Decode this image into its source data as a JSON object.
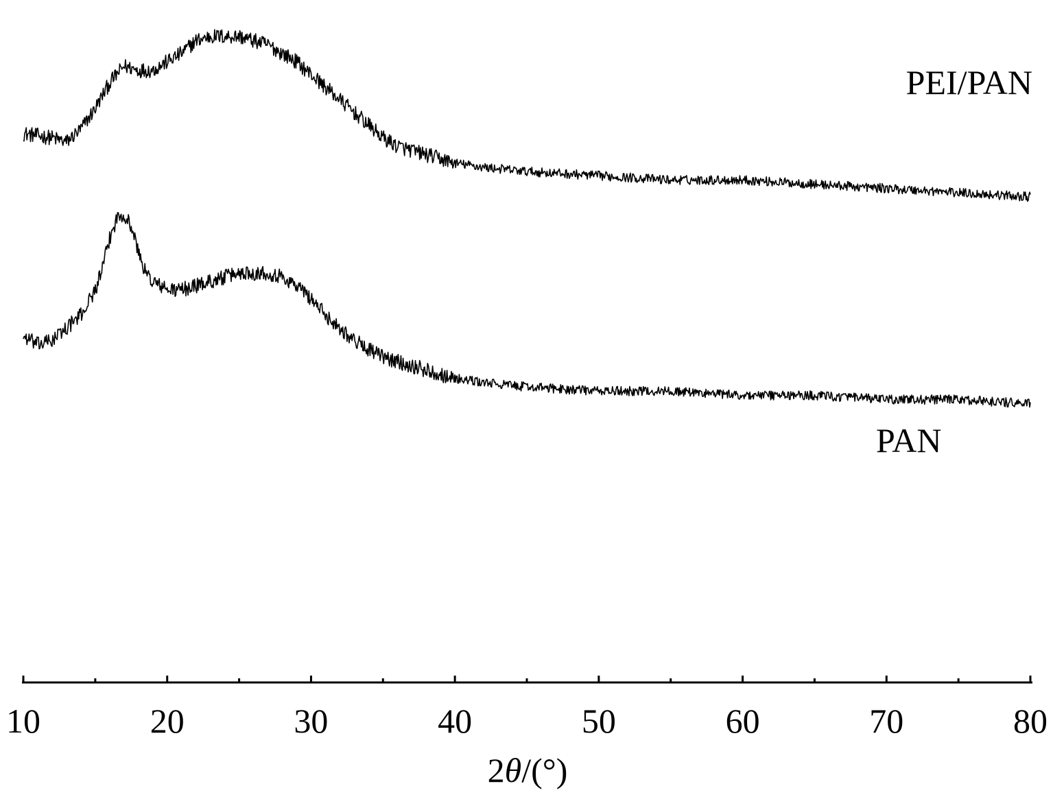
{
  "chart_data": {
    "type": "line",
    "title": "",
    "xlabel": "2θ/(°)",
    "xlabel_parts": [
      "2",
      "θ",
      "/(°)"
    ],
    "ylabel": "",
    "xlim": [
      10,
      80
    ],
    "ylim": [
      0,
      1.6
    ],
    "x_ticks_major": [
      10,
      20,
      30,
      40,
      50,
      60,
      70,
      80
    ],
    "x_ticks_minor": [
      15,
      25,
      35,
      45,
      55,
      65,
      75
    ],
    "y_axis_visible": false,
    "grid": false,
    "legend": "none",
    "colors": {
      "line": "#000000",
      "axis": "#000000",
      "background": "#ffffff"
    },
    "series": [
      {
        "name": "PEI/PAN",
        "x": [
          10,
          12,
          13,
          14,
          15,
          16,
          17,
          18,
          19,
          20,
          21,
          22,
          23,
          24,
          25,
          26,
          27,
          28,
          29,
          30,
          31,
          32,
          33,
          34,
          35,
          36,
          37,
          38,
          39,
          40,
          42,
          45,
          50,
          55,
          60,
          65,
          70,
          75,
          80
        ],
        "y": [
          1.3,
          1.29,
          1.28,
          1.31,
          1.36,
          1.42,
          1.46,
          1.45,
          1.45,
          1.47,
          1.49,
          1.52,
          1.53,
          1.53,
          1.53,
          1.52,
          1.51,
          1.49,
          1.47,
          1.44,
          1.41,
          1.38,
          1.35,
          1.32,
          1.29,
          1.27,
          1.26,
          1.25,
          1.24,
          1.23,
          1.22,
          1.21,
          1.2,
          1.19,
          1.19,
          1.18,
          1.17,
          1.16,
          1.15
        ]
      },
      {
        "name": "PAN",
        "x": [
          10,
          11,
          12,
          13,
          14,
          15,
          15.5,
          16,
          16.5,
          17,
          17.5,
          18,
          18.5,
          19,
          20,
          21,
          22,
          23,
          24,
          25,
          26,
          27,
          28,
          29,
          30,
          31,
          32,
          33,
          34,
          35,
          36,
          37,
          38,
          39,
          40,
          42,
          45,
          50,
          55,
          60,
          65,
          70,
          75,
          80
        ],
        "y": [
          0.82,
          0.8,
          0.81,
          0.84,
          0.87,
          0.93,
          0.98,
          1.05,
          1.1,
          1.11,
          1.08,
          1.02,
          0.97,
          0.95,
          0.93,
          0.93,
          0.94,
          0.95,
          0.96,
          0.97,
          0.97,
          0.97,
          0.96,
          0.94,
          0.91,
          0.87,
          0.84,
          0.81,
          0.79,
          0.77,
          0.76,
          0.75,
          0.74,
          0.73,
          0.72,
          0.71,
          0.7,
          0.69,
          0.69,
          0.68,
          0.68,
          0.67,
          0.67,
          0.66
        ]
      }
    ]
  }
}
